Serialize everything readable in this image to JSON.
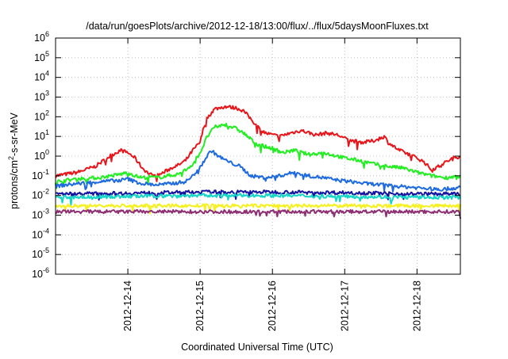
{
  "chart_data": {
    "type": "line",
    "title": "/data/run/goesPlots/archive/2012-12-18/13:00/flux/../flux/5daysMoonFluxes.txt",
    "xlabel": "Coordinated Universal Time (UTC)",
    "ylabel": {
      "pre": "protons/cm",
      "sup": "2",
      "post": "-s-sr-MeV"
    },
    "yscale": "log",
    "ylim_exp": [
      -6,
      6
    ],
    "y_ticks": [
      {
        "base": "10",
        "exp": "-6"
      },
      {
        "base": "10",
        "exp": "-5"
      },
      {
        "base": "10",
        "exp": "-4"
      },
      {
        "base": "10",
        "exp": "-3"
      },
      {
        "base": "10",
        "exp": "-2"
      },
      {
        "base": "10",
        "exp": "-1"
      },
      {
        "base": "10",
        "exp": "0"
      },
      {
        "base": "10",
        "exp": "1"
      },
      {
        "base": "10",
        "exp": "2"
      },
      {
        "base": "10",
        "exp": "3"
      },
      {
        "base": "10",
        "exp": "4"
      },
      {
        "base": "10",
        "exp": "5"
      },
      {
        "base": "10",
        "exp": "6"
      }
    ],
    "xlim_days": [
      0,
      5.6
    ],
    "x_ticks": [
      {
        "day": 1,
        "label": "2012-12-14"
      },
      {
        "day": 2,
        "label": "2012-12-15"
      },
      {
        "day": 3,
        "label": "2012-12-16"
      },
      {
        "day": 4,
        "label": "2012-12-17"
      },
      {
        "day": 5,
        "label": "2012-12-18"
      }
    ],
    "grid": true,
    "legend": "none",
    "series": [
      {
        "color": "#e8161b",
        "points": [
          [
            0,
            0.1
          ],
          [
            0.3,
            0.15
          ],
          [
            0.55,
            0.3
          ],
          [
            0.75,
            1.0
          ],
          [
            0.9,
            2.0
          ],
          [
            1.0,
            1.5
          ],
          [
            1.1,
            0.8
          ],
          [
            1.2,
            0.25
          ],
          [
            1.3,
            0.12
          ],
          [
            1.4,
            0.1
          ],
          [
            1.5,
            0.15
          ],
          [
            1.6,
            0.25
          ],
          [
            1.7,
            0.35
          ],
          [
            1.8,
            0.6
          ],
          [
            1.9,
            2.0
          ],
          [
            2.0,
            5.0
          ],
          [
            2.05,
            30
          ],
          [
            2.1,
            90
          ],
          [
            2.2,
            250
          ],
          [
            2.35,
            330
          ],
          [
            2.5,
            280
          ],
          [
            2.6,
            200
          ],
          [
            2.7,
            80
          ],
          [
            2.8,
            30
          ],
          [
            2.9,
            15
          ],
          [
            3.0,
            12
          ],
          [
            3.1,
            10
          ],
          [
            3.25,
            15
          ],
          [
            3.4,
            20
          ],
          [
            3.6,
            12
          ],
          [
            3.75,
            15
          ],
          [
            3.9,
            12
          ],
          [
            4.0,
            8
          ],
          [
            4.1,
            6
          ],
          [
            4.25,
            5
          ],
          [
            4.4,
            6
          ],
          [
            4.55,
            10
          ],
          [
            4.6,
            5
          ],
          [
            4.75,
            2
          ],
          [
            4.9,
            1.2
          ],
          [
            5.0,
            0.8
          ],
          [
            5.1,
            0.5
          ],
          [
            5.2,
            0.2
          ],
          [
            5.3,
            0.3
          ],
          [
            5.4,
            0.5
          ],
          [
            5.5,
            0.8
          ],
          [
            5.6,
            1.0
          ]
        ]
      },
      {
        "color": "#22ee22",
        "points": [
          [
            0,
            0.05
          ],
          [
            0.3,
            0.07
          ],
          [
            0.6,
            0.08
          ],
          [
            0.9,
            0.12
          ],
          [
            1.0,
            0.15
          ],
          [
            1.1,
            0.1
          ],
          [
            1.2,
            0.08
          ],
          [
            1.3,
            0.09
          ],
          [
            1.4,
            0.08
          ],
          [
            1.55,
            0.1
          ],
          [
            1.7,
            0.12
          ],
          [
            1.8,
            0.2
          ],
          [
            1.9,
            0.4
          ],
          [
            2.0,
            1.5
          ],
          [
            2.1,
            10
          ],
          [
            2.2,
            30
          ],
          [
            2.35,
            40
          ],
          [
            2.5,
            25
          ],
          [
            2.6,
            15
          ],
          [
            2.75,
            5
          ],
          [
            2.9,
            3
          ],
          [
            3.0,
            2.5
          ],
          [
            3.15,
            1.5
          ],
          [
            3.3,
            2.0
          ],
          [
            3.5,
            1.2
          ],
          [
            3.7,
            1.5
          ],
          [
            3.9,
            1.0
          ],
          [
            4.0,
            0.8
          ],
          [
            4.2,
            0.6
          ],
          [
            4.4,
            0.4
          ],
          [
            4.6,
            0.3
          ],
          [
            4.8,
            0.25
          ],
          [
            5.0,
            0.15
          ],
          [
            5.2,
            0.1
          ],
          [
            5.4,
            0.08
          ],
          [
            5.6,
            0.1
          ]
        ]
      },
      {
        "color": "#1e6ae0",
        "points": [
          [
            0,
            0.03
          ],
          [
            0.3,
            0.04
          ],
          [
            0.6,
            0.05
          ],
          [
            0.9,
            0.06
          ],
          [
            1.0,
            0.07
          ],
          [
            1.1,
            0.05
          ],
          [
            1.2,
            0.04
          ],
          [
            1.4,
            0.035
          ],
          [
            1.6,
            0.04
          ],
          [
            1.8,
            0.05
          ],
          [
            1.9,
            0.1
          ],
          [
            2.0,
            0.3
          ],
          [
            2.1,
            1.0
          ],
          [
            2.15,
            2.0
          ],
          [
            2.25,
            1.0
          ],
          [
            2.4,
            0.5
          ],
          [
            2.55,
            0.3
          ],
          [
            2.7,
            0.1
          ],
          [
            2.9,
            0.08
          ],
          [
            3.1,
            0.1
          ],
          [
            3.3,
            0.15
          ],
          [
            3.5,
            0.1
          ],
          [
            3.7,
            0.08
          ],
          [
            3.9,
            0.06
          ],
          [
            4.1,
            0.05
          ],
          [
            4.3,
            0.04
          ],
          [
            4.5,
            0.035
          ],
          [
            4.7,
            0.03
          ],
          [
            5.0,
            0.025
          ],
          [
            5.3,
            0.02
          ],
          [
            5.6,
            0.025
          ]
        ]
      },
      {
        "color": "#1414a0",
        "points": [
          [
            0,
            0.012
          ],
          [
            1.0,
            0.013
          ],
          [
            2.0,
            0.015
          ],
          [
            3.0,
            0.015
          ],
          [
            4.0,
            0.014
          ],
          [
            5.0,
            0.012
          ],
          [
            5.6,
            0.012
          ]
        ]
      },
      {
        "color": "#12d6c8",
        "points": [
          [
            0,
            0.008
          ],
          [
            1.0,
            0.009
          ],
          [
            2.0,
            0.01
          ],
          [
            3.0,
            0.01
          ],
          [
            4.0,
            0.009
          ],
          [
            5.0,
            0.008
          ],
          [
            5.6,
            0.008
          ]
        ]
      },
      {
        "color": "#f5f01e",
        "points": [
          [
            0,
            0.003
          ],
          [
            1.0,
            0.003
          ],
          [
            2.0,
            0.003
          ],
          [
            3.0,
            0.003
          ],
          [
            4.0,
            0.003
          ],
          [
            5.0,
            0.003
          ],
          [
            5.6,
            0.003
          ]
        ]
      },
      {
        "color": "#8e2f73",
        "points": [
          [
            0,
            0.0015
          ],
          [
            1.0,
            0.0015
          ],
          [
            2.0,
            0.0015
          ],
          [
            3.0,
            0.0015
          ],
          [
            4.0,
            0.0015
          ],
          [
            5.0,
            0.0015
          ],
          [
            5.6,
            0.0015
          ]
        ]
      }
    ]
  }
}
